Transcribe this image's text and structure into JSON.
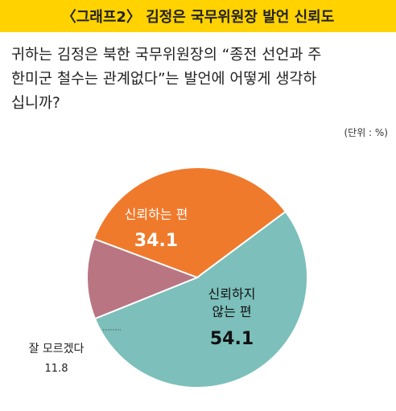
{
  "header": {
    "title": "〈그래프2〉 김정은 국무위원장 발언 신뢰도"
  },
  "question": {
    "lines": [
      "귀하는 김정은 북한 국무위원장의 “종전 선언과 주",
      "한미군 철수는 관계없다”는 발언에 어떻게 생각하",
      "십니까?"
    ]
  },
  "unit": "(단위 : %)",
  "chart_data": {
    "type": "pie",
    "title": "",
    "slices": [
      {
        "label": "신뢰하는 편",
        "value": 34.1,
        "color": "#f07a2c",
        "value_text": "34.1"
      },
      {
        "label": "신뢰하지 않는 편",
        "value": 54.1,
        "color": "#7cbfbb",
        "value_text": "54.1"
      },
      {
        "label": "잘 모르겠다",
        "value": 11.8,
        "color": "#b97582",
        "value_text": "11.8"
      }
    ],
    "label_lines": {
      "trust": [
        "신뢰하는 편"
      ],
      "distrust": [
        "신뢰하지",
        "않는 편"
      ],
      "unsure": [
        "잘 모르겠다"
      ]
    }
  }
}
